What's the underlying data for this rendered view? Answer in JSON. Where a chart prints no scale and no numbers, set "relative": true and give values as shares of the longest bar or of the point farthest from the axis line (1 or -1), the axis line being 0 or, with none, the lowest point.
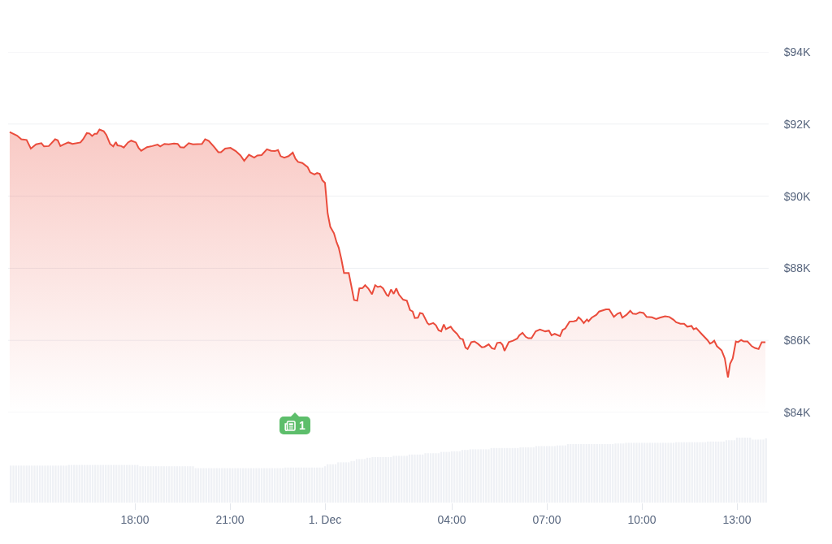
{
  "chart_data": [
    {
      "type": "area",
      "x": [
        "--11-30T14:03",
        "--11-30T14:17",
        "--11-30T14:25",
        "--11-30T14:35",
        "--11-30T14:43",
        "--11-30T14:53",
        "--11-30T15:03",
        "--11-30T15:08",
        "--11-30T15:17",
        "--11-30T15:29",
        "--11-30T15:34",
        "--11-30T15:39",
        "--11-30T15:46",
        "--11-30T15:54",
        "--11-30T16:02",
        "--11-30T16:17",
        "--11-30T16:22",
        "--11-30T16:29",
        "--11-30T16:34",
        "--11-30T16:39",
        "--11-30T16:44",
        "--11-30T16:48",
        "--11-30T16:53",
        "--11-30T17:01",
        "--11-30T17:06",
        "--11-30T17:13",
        "--11-30T17:19",
        "--11-30T17:24",
        "--11-30T17:27",
        "--11-30T17:34",
        "--11-30T17:39",
        "--11-30T17:47",
        "--11-30T17:53",
        "--11-30T18:02",
        "--11-30T18:07",
        "--11-30T18:12",
        "--11-30T18:23",
        "--11-30T18:33",
        "--11-30T18:43",
        "--11-30T18:48",
        "--11-30T18:56",
        "--11-30T19:04",
        "--11-30T19:14",
        "--11-30T19:21",
        "--11-30T19:26",
        "--11-30T19:33",
        "--11-30T19:42",
        "--11-30T19:50",
        "--11-30T20:07",
        "--11-30T20:13",
        "--11-30T20:20",
        "--11-30T20:31",
        "--11-30T20:38",
        "--11-30T20:43",
        "--11-30T20:51",
        "--11-30T21:01",
        "--11-30T21:11",
        "--11-30T21:20",
        "--11-30T21:27",
        "--11-30T21:36",
        "--11-30T21:46",
        "--11-30T21:52",
        "--11-30T22:00",
        "--11-30T22:10",
        "--11-30T22:18",
        "--11-30T22:25",
        "--11-30T22:31",
        "--11-30T22:36",
        "--11-30T22:43",
        "--11-30T22:51",
        "--11-30T22:59",
        "--11-30T23:04",
        "--11-30T23:09",
        "--11-30T23:17",
        "--11-30T23:27",
        "--11-30T23:32",
        "--11-30T23:40",
        "--11-30T23:45",
        "--11-30T23:50",
        "--11-30T23:55",
        "--12-01T00:00",
        "--12-01T00:05",
        "--12-01T00:10",
        "--12-01T00:17",
        "--12-01T00:22",
        "--12-01T00:26",
        "--12-01T00:31",
        "--12-01T00:36",
        "--12-01T00:45",
        "--12-01T00:50",
        "--12-01T00:55",
        "--12-01T01:01",
        "--12-01T01:05",
        "--12-01T01:11",
        "--12-01T01:16",
        "--12-01T01:22",
        "--12-01T01:29",
        "--12-01T01:35",
        "--12-01T01:40",
        "--12-01T01:45",
        "--12-01T01:50",
        "--12-01T01:57",
        "--12-01T02:00",
        "--12-01T02:05",
        "--12-01T02:10",
        "--12-01T02:15",
        "--12-01T02:20",
        "--12-01T02:28",
        "--12-01T02:35",
        "--12-01T02:41",
        "--12-01T02:46",
        "--12-01T02:50",
        "--12-01T02:56",
        "--12-01T03:00",
        "--12-01T03:05",
        "--12-01T03:14",
        "--12-01T03:17",
        "--12-01T03:25",
        "--12-01T03:30",
        "--12-01T03:35",
        "--12-01T03:40",
        "--12-01T03:45",
        "--12-01T03:49",
        "--12-01T03:58",
        "--12-01T04:03",
        "--12-01T04:10",
        "--12-01T04:16",
        "--12-01T04:21",
        "--12-01T04:26",
        "--12-01T04:30",
        "--12-01T04:37",
        "--12-01T04:43",
        "--12-01T04:50",
        "--12-01T04:57",
        "--12-01T05:02",
        "--12-01T05:10",
        "--12-01T05:16",
        "--12-01T05:21",
        "--12-01T05:26",
        "--12-01T05:32",
        "--12-01T05:36",
        "--12-01T05:40",
        "--12-01T05:48",
        "--12-01T05:56",
        "--12-01T06:04",
        "--12-01T06:08",
        "--12-01T06:14",
        "--12-01T06:20",
        "--12-01T06:25",
        "--12-01T06:31",
        "--12-01T06:39",
        "--12-01T06:47",
        "--12-01T06:57",
        "--12-01T07:04",
        "--12-01T07:09",
        "--12-01T07:15",
        "--12-01T07:25",
        "--12-01T07:30",
        "--12-01T07:35",
        "--12-01T07:43",
        "--12-01T07:51",
        "--12-01T07:56",
        "--12-01T08:00",
        "--12-01T08:04",
        "--12-01T08:10",
        "--12-01T08:16",
        "--12-01T08:19",
        "--12-01T08:25",
        "--12-01T08:34",
        "--12-01T08:39",
        "--12-01T08:52",
        "--12-01T08:58",
        "--12-01T09:07",
        "--12-01T09:14",
        "--12-01T09:19",
        "--12-01T09:23",
        "--12-01T09:31",
        "--12-01T09:38",
        "--12-01T09:43",
        "--12-01T09:49",
        "--12-01T09:56",
        "--12-01T10:03",
        "--12-01T10:09",
        "--12-01T10:19",
        "--12-01T10:27",
        "--12-01T10:34",
        "--12-01T10:44",
        "--12-01T10:52",
        "--12-01T11:00",
        "--12-01T11:05",
        "--12-01T11:13",
        "--12-01T11:20",
        "--12-01T11:26",
        "--12-01T11:34",
        "--12-01T11:38",
        "--12-01T11:43",
        "--12-01T11:53",
        "--12-01T12:04",
        "--12-01T12:09",
        "--12-01T12:13",
        "--12-01T12:17",
        "--12-01T12:22",
        "--12-01T12:31",
        "--12-01T12:37",
        "--12-01T12:43",
        "--12-01T12:47",
        "--12-01T12:52",
        "--12-01T12:58",
        "--12-01T13:02",
        "--12-01T13:08",
        "--12-01T13:13",
        "--12-01T13:20",
        "--12-01T13:28",
        "--12-01T13:34",
        "--12-01T13:41",
        "--12-01T13:47",
        "--12-01T13:54"
      ],
      "series": [
        {
          "color": "#ea4c3c",
          "values": [
            91780,
            91680,
            91580,
            91560,
            91320,
            91440,
            91470,
            91380,
            91390,
            91580,
            91550,
            91390,
            91440,
            91490,
            91450,
            91490,
            91580,
            91750,
            91740,
            91670,
            91730,
            91730,
            91850,
            91800,
            91700,
            91450,
            91380,
            91500,
            91410,
            91390,
            91350,
            91490,
            91540,
            91490,
            91340,
            91260,
            91360,
            91390,
            91430,
            91380,
            91450,
            91440,
            91460,
            91450,
            91360,
            91350,
            91470,
            91440,
            91450,
            91580,
            91530,
            91350,
            91220,
            91220,
            91320,
            91340,
            91250,
            91130,
            90980,
            91150,
            91070,
            91130,
            91140,
            91300,
            91260,
            91250,
            91280,
            91110,
            91070,
            91110,
            91210,
            91040,
            90950,
            90920,
            90810,
            90660,
            90600,
            90640,
            90620,
            90440,
            90370,
            89530,
            89150,
            88970,
            88720,
            88570,
            88250,
            87870,
            87870,
            87500,
            87120,
            87100,
            87440,
            87450,
            87530,
            87440,
            87280,
            87530,
            87480,
            87500,
            87440,
            87260,
            87230,
            87410,
            87290,
            87440,
            87270,
            87130,
            87100,
            86840,
            86800,
            86620,
            86630,
            86760,
            86740,
            86480,
            86440,
            86480,
            86420,
            86280,
            86250,
            86440,
            86310,
            86380,
            86280,
            86180,
            86050,
            86030,
            85800,
            85760,
            85950,
            85970,
            85900,
            85810,
            85820,
            85890,
            85780,
            85760,
            85930,
            85940,
            85880,
            85710,
            85950,
            85990,
            86050,
            86140,
            86210,
            86100,
            86060,
            86060,
            86250,
            86300,
            86250,
            86270,
            86140,
            86180,
            86120,
            86290,
            86330,
            86520,
            86530,
            86550,
            86640,
            86590,
            86480,
            86580,
            86530,
            86630,
            86710,
            86800,
            86860,
            86860,
            86650,
            86740,
            86770,
            86630,
            86710,
            86820,
            86740,
            86730,
            86780,
            86760,
            86650,
            86640,
            86590,
            86630,
            86670,
            86650,
            86570,
            86500,
            86460,
            86460,
            86380,
            86400,
            86310,
            86340,
            86180,
            86010,
            85910,
            85940,
            85990,
            85840,
            85720,
            85500,
            84970,
            85350,
            85500,
            85970,
            85950,
            86010,
            85970,
            85970,
            85840,
            85790,
            85760,
            85950,
            85950
          ]
        }
      ],
      "xlim": [
        "--11-30T14:00",
        "--12-01T14:00"
      ],
      "ylim": [
        84000,
        94000
      ],
      "yticks": [
        {
          "value": 84000,
          "label": "$84K"
        },
        {
          "value": 86000,
          "label": "$86K"
        },
        {
          "value": 88000,
          "label": "$88K"
        },
        {
          "value": 90000,
          "label": "$90K"
        },
        {
          "value": 92000,
          "label": "$92K"
        },
        {
          "value": 94000,
          "label": "$94K"
        }
      ],
      "grid": "y",
      "tick_labels": "y",
      "annotations": [
        "1"
      ]
    },
    {
      "type": "bar",
      "relative": true,
      "x": [
        "--11-30T14:05",
        "--11-30T14:10",
        "--11-30T14:15",
        "--11-30T14:20",
        "--11-30T14:25",
        "--11-30T14:30",
        "--11-30T14:35",
        "--11-30T14:40",
        "--11-30T14:45",
        "--11-30T14:50",
        "--11-30T14:55",
        "--11-30T15:00",
        "--11-30T15:05",
        "--11-30T15:10",
        "--11-30T15:15",
        "--11-30T15:20",
        "--11-30T15:25",
        "--11-30T15:30",
        "--11-30T15:35",
        "--11-30T15:40",
        "--11-30T15:45",
        "--11-30T15:50",
        "--11-30T15:55",
        "--11-30T16:00",
        "--11-30T16:05",
        "--11-30T16:10",
        "--11-30T16:15",
        "--11-30T16:20",
        "--11-30T16:25",
        "--11-30T16:30",
        "--11-30T16:35",
        "--11-30T16:40",
        "--11-30T16:45",
        "--11-30T16:50",
        "--11-30T16:55",
        "--11-30T17:00",
        "--11-30T17:05",
        "--11-30T17:10",
        "--11-30T17:15",
        "--11-30T17:20",
        "--11-30T17:25",
        "--11-30T17:30",
        "--11-30T17:35",
        "--11-30T17:40",
        "--11-30T17:45",
        "--11-30T17:50",
        "--11-30T17:55",
        "--11-30T18:00",
        "--11-30T18:05",
        "--11-30T18:10",
        "--11-30T18:15",
        "--11-30T18:20",
        "--11-30T18:25",
        "--11-30T18:30",
        "--11-30T18:35",
        "--11-30T18:40",
        "--11-30T18:45",
        "--11-30T18:50",
        "--11-30T18:55",
        "--11-30T19:00",
        "--11-30T19:05",
        "--11-30T19:10",
        "--11-30T19:15",
        "--11-30T19:20",
        "--11-30T19:25",
        "--11-30T19:30",
        "--11-30T19:35",
        "--11-30T19:40",
        "--11-30T19:45",
        "--11-30T19:50",
        "--11-30T19:55",
        "--11-30T20:00",
        "--11-30T20:05",
        "--11-30T20:10",
        "--11-30T20:15",
        "--11-30T20:20",
        "--11-30T20:25",
        "--11-30T20:30",
        "--11-30T20:35",
        "--11-30T20:40",
        "--11-30T20:45",
        "--11-30T20:50",
        "--11-30T20:55",
        "--11-30T21:00",
        "--11-30T21:05",
        "--11-30T21:10",
        "--11-30T21:15",
        "--11-30T21:20",
        "--11-30T21:25",
        "--11-30T21:30",
        "--11-30T21:35",
        "--11-30T21:40",
        "--11-30T21:45",
        "--11-30T21:50",
        "--11-30T21:55",
        "--11-30T22:00",
        "--11-30T22:05",
        "--11-30T22:10",
        "--11-30T22:15",
        "--11-30T22:20",
        "--11-30T22:25",
        "--11-30T22:30",
        "--11-30T22:35",
        "--11-30T22:40",
        "--11-30T22:45",
        "--11-30T22:50",
        "--11-30T22:55",
        "--11-30T23:00",
        "--11-30T23:05",
        "--11-30T23:10",
        "--11-30T23:15",
        "--11-30T23:20",
        "--11-30T23:25",
        "--11-30T23:30",
        "--11-30T23:35",
        "--11-30T23:40",
        "--11-30T23:45",
        "--11-30T23:50",
        "--11-30T23:55",
        "--12-01T00:00",
        "--12-01T00:05",
        "--12-01T00:10",
        "--12-01T00:15",
        "--12-01T00:20",
        "--12-01T00:25",
        "--12-01T00:30",
        "--12-01T00:35",
        "--12-01T00:40",
        "--12-01T00:45",
        "--12-01T00:50",
        "--12-01T00:55",
        "--12-01T01:00",
        "--12-01T01:05",
        "--12-01T01:10",
        "--12-01T01:15",
        "--12-01T01:20",
        "--12-01T01:25",
        "--12-01T01:30",
        "--12-01T01:35",
        "--12-01T01:40",
        "--12-01T01:45",
        "--12-01T01:50",
        "--12-01T01:55",
        "--12-01T02:00",
        "--12-01T02:05",
        "--12-01T02:10",
        "--12-01T02:15",
        "--12-01T02:20",
        "--12-01T02:25",
        "--12-01T02:30",
        "--12-01T02:35",
        "--12-01T02:40",
        "--12-01T02:45",
        "--12-01T02:50",
        "--12-01T02:55",
        "--12-01T03:00",
        "--12-01T03:05",
        "--12-01T03:10",
        "--12-01T03:15",
        "--12-01T03:20",
        "--12-01T03:25",
        "--12-01T03:30",
        "--12-01T03:35",
        "--12-01T03:40",
        "--12-01T03:45",
        "--12-01T03:50",
        "--12-01T03:55",
        "--12-01T04:00",
        "--12-01T04:05",
        "--12-01T04:10",
        "--12-01T04:15",
        "--12-01T04:20",
        "--12-01T04:25",
        "--12-01T04:30",
        "--12-01T04:35",
        "--12-01T04:40",
        "--12-01T04:45",
        "--12-01T04:50",
        "--12-01T04:55",
        "--12-01T05:00",
        "--12-01T05:05",
        "--12-01T05:10",
        "--12-01T05:15",
        "--12-01T05:20",
        "--12-01T05:25",
        "--12-01T05:30",
        "--12-01T05:35",
        "--12-01T05:40",
        "--12-01T05:45",
        "--12-01T05:50",
        "--12-01T05:55",
        "--12-01T06:00",
        "--12-01T06:05",
        "--12-01T06:10",
        "--12-01T06:15",
        "--12-01T06:20",
        "--12-01T06:25",
        "--12-01T06:30",
        "--12-01T06:35",
        "--12-01T06:40",
        "--12-01T06:45",
        "--12-01T06:50",
        "--12-01T06:55",
        "--12-01T07:00",
        "--12-01T07:05",
        "--12-01T07:10",
        "--12-01T07:15",
        "--12-01T07:20",
        "--12-01T07:25",
        "--12-01T07:30",
        "--12-01T07:35",
        "--12-01T07:40",
        "--12-01T07:45",
        "--12-01T07:50",
        "--12-01T07:55",
        "--12-01T08:00",
        "--12-01T08:05",
        "--12-01T08:10",
        "--12-01T08:15",
        "--12-01T08:20",
        "--12-01T08:25",
        "--12-01T08:30",
        "--12-01T08:35",
        "--12-01T08:40",
        "--12-01T08:45",
        "--12-01T08:50",
        "--12-01T08:55",
        "--12-01T09:00",
        "--12-01T09:05",
        "--12-01T09:10",
        "--12-01T09:15",
        "--12-01T09:20",
        "--12-01T09:25",
        "--12-01T09:30",
        "--12-01T09:35",
        "--12-01T09:40",
        "--12-01T09:45",
        "--12-01T09:50",
        "--12-01T09:55",
        "--12-01T10:00",
        "--12-01T10:05",
        "--12-01T10:10",
        "--12-01T10:15",
        "--12-01T10:20",
        "--12-01T10:25",
        "--12-01T10:30",
        "--12-01T10:35",
        "--12-01T10:40",
        "--12-01T10:45",
        "--12-01T10:50",
        "--12-01T10:55",
        "--12-01T11:00",
        "--12-01T11:05",
        "--12-01T11:10",
        "--12-01T11:15",
        "--12-01T11:20",
        "--12-01T11:25",
        "--12-01T11:30",
        "--12-01T11:35",
        "--12-01T11:40",
        "--12-01T11:45",
        "--12-01T11:50",
        "--12-01T11:55",
        "--12-01T12:00",
        "--12-01T12:05",
        "--12-01T12:10",
        "--12-01T12:15",
        "--12-01T12:20",
        "--12-01T12:25",
        "--12-01T12:30",
        "--12-01T12:35",
        "--12-01T12:40",
        "--12-01T12:45",
        "--12-01T12:50",
        "--12-01T12:55",
        "--12-01T13:00",
        "--12-01T13:05",
        "--12-01T13:10",
        "--12-01T13:15",
        "--12-01T13:20",
        "--12-01T13:25",
        "--12-01T13:30",
        "--12-01T13:35",
        "--12-01T13:40",
        "--12-01T13:45",
        "--12-01T13:50",
        "--12-01T13:55"
      ],
      "series": [
        {
          "color": "#eff1f5",
          "values": [
            0.57,
            0.57,
            0.57,
            0.57,
            0.57,
            0.57,
            0.57,
            0.57,
            0.57,
            0.57,
            0.57,
            0.57,
            0.57,
            0.57,
            0.57,
            0.57,
            0.57,
            0.57,
            0.57,
            0.57,
            0.57,
            0.57,
            0.58,
            0.58,
            0.58,
            0.58,
            0.58,
            0.58,
            0.58,
            0.58,
            0.58,
            0.58,
            0.58,
            0.58,
            0.58,
            0.58,
            0.58,
            0.58,
            0.58,
            0.58,
            0.58,
            0.58,
            0.58,
            0.58,
            0.58,
            0.58,
            0.58,
            0.58,
            0.58,
            0.56,
            0.56,
            0.56,
            0.56,
            0.56,
            0.56,
            0.56,
            0.56,
            0.56,
            0.56,
            0.56,
            0.56,
            0.56,
            0.56,
            0.56,
            0.56,
            0.56,
            0.56,
            0.56,
            0.56,
            0.56,
            0.53,
            0.53,
            0.53,
            0.53,
            0.53,
            0.53,
            0.53,
            0.53,
            0.53,
            0.53,
            0.53,
            0.53,
            0.53,
            0.53,
            0.53,
            0.53,
            0.53,
            0.53,
            0.53,
            0.53,
            0.53,
            0.53,
            0.53,
            0.53,
            0.53,
            0.53,
            0.53,
            0.53,
            0.53,
            0.53,
            0.53,
            0.53,
            0.53,
            0.53,
            0.54,
            0.54,
            0.54,
            0.54,
            0.54,
            0.54,
            0.54,
            0.54,
            0.54,
            0.54,
            0.54,
            0.54,
            0.54,
            0.54,
            0.54,
            0.56,
            0.59,
            0.59,
            0.59,
            0.59,
            0.62,
            0.62,
            0.62,
            0.62,
            0.62,
            0.64,
            0.64,
            0.67,
            0.67,
            0.67,
            0.67,
            0.69,
            0.69,
            0.7,
            0.7,
            0.7,
            0.7,
            0.7,
            0.7,
            0.7,
            0.7,
            0.72,
            0.72,
            0.72,
            0.72,
            0.72,
            0.72,
            0.74,
            0.74,
            0.74,
            0.74,
            0.74,
            0.74,
            0.76,
            0.76,
            0.76,
            0.76,
            0.76,
            0.76,
            0.78,
            0.78,
            0.78,
            0.78,
            0.79,
            0.79,
            0.79,
            0.79,
            0.81,
            0.81,
            0.81,
            0.82,
            0.82,
            0.82,
            0.82,
            0.82,
            0.82,
            0.82,
            0.82,
            0.84,
            0.84,
            0.84,
            0.84,
            0.84,
            0.84,
            0.84,
            0.84,
            0.84,
            0.84,
            0.84,
            0.85,
            0.85,
            0.85,
            0.85,
            0.85,
            0.85,
            0.87,
            0.87,
            0.87,
            0.87,
            0.87,
            0.87,
            0.87,
            0.87,
            0.88,
            0.88,
            0.88,
            0.88,
            0.9,
            0.9,
            0.9,
            0.9,
            0.9,
            0.9,
            0.9,
            0.9,
            0.9,
            0.9,
            0.9,
            0.9,
            0.9,
            0.9,
            0.9,
            0.9,
            0.9,
            0.9,
            0.91,
            0.91,
            0.91,
            0.91,
            0.92,
            0.92,
            0.92,
            0.92,
            0.92,
            0.92,
            0.92,
            0.92,
            0.92,
            0.92,
            0.92,
            0.92,
            0.92,
            0.92,
            0.92,
            0.92,
            0.92,
            0.92,
            0.92,
            0.93,
            0.93,
            0.93,
            0.93,
            0.93,
            0.93,
            0.93,
            0.93,
            0.93,
            0.93,
            0.93,
            0.93,
            0.94,
            0.94,
            0.94,
            0.94,
            0.94,
            0.94,
            0.94,
            0.96,
            0.96,
            0.96,
            0.96,
            1,
            1,
            1,
            1,
            1,
            1,
            0.97,
            0.97,
            0.97,
            0.97,
            0.97,
            0.99
          ]
        }
      ],
      "xlim": [
        "--11-30T14:00",
        "--12-01T14:00"
      ],
      "xticks": [
        {
          "value": "--11-30T18:00",
          "label": "18:00"
        },
        {
          "value": "--11-30T21:00",
          "label": "21:00"
        },
        {
          "value": "--12-01T00:00",
          "label": "1. Dec"
        },
        {
          "value": "--12-01T04:00",
          "label": "04:00"
        },
        {
          "value": "--12-01T07:00",
          "label": "07:00"
        },
        {
          "value": "--12-01T10:00",
          "label": "10:00"
        },
        {
          "value": "--12-01T13:00",
          "label": "13:00"
        }
      ],
      "tick_labels": "x"
    }
  ]
}
